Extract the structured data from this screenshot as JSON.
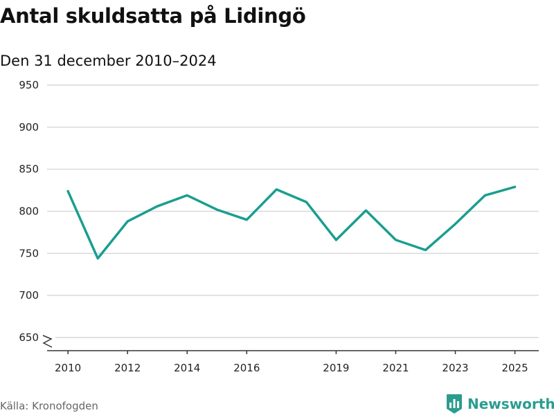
{
  "chart_data": {
    "type": "line",
    "title": "Antal skuldsatta på Lidingö",
    "subtitle": "Den 31 december 2010–2024",
    "xlabel": "",
    "ylabel": "",
    "x": [
      2010,
      2011,
      2012,
      2013,
      2014,
      2015,
      2016,
      2017,
      2018,
      2019,
      2020,
      2021,
      2022,
      2023,
      2024,
      2025
    ],
    "series": [
      {
        "name": "Antal skuldsatta",
        "values": [
          824,
          744,
          788,
          806,
          819,
          802,
          790,
          826,
          811,
          766,
          801,
          766,
          754,
          785,
          819,
          829
        ],
        "color": "#1a9e90"
      }
    ],
    "yticks": [
      650,
      700,
      750,
      800,
      850,
      900,
      950
    ],
    "xticks": [
      2010,
      2012,
      2014,
      2016,
      2019,
      2021,
      2023,
      2025
    ],
    "xlim": [
      2009.3,
      2025.8
    ],
    "ylim": [
      650,
      950
    ],
    "axis_break": true,
    "grid": true,
    "legend": "none"
  },
  "source": "Källa: Kronofogden",
  "brand": {
    "name": "Newsworthy",
    "color": "#2a9d8f",
    "icon": "bar-chart-badge-icon"
  }
}
